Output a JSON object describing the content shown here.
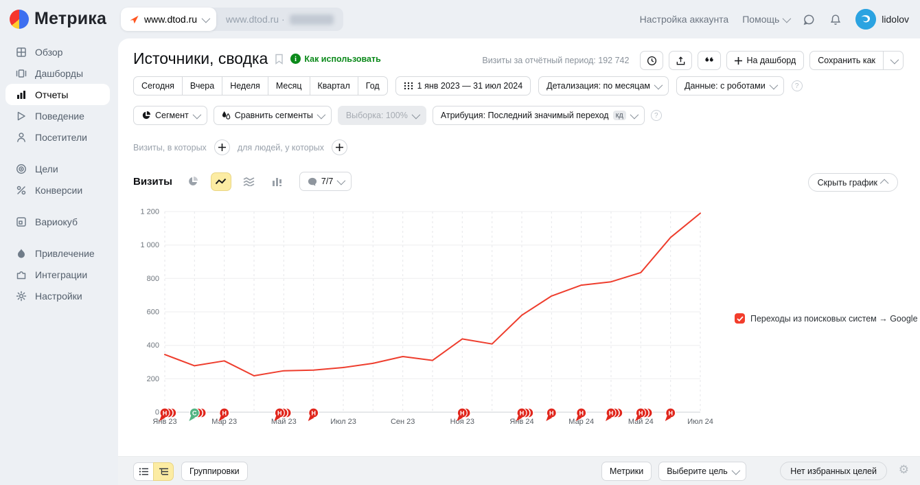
{
  "header": {
    "logo_text": "Метрика",
    "counter_active": "www.dtod.ru",
    "counter_secondary": "www.dtod.ru ·",
    "account_settings": "Настройка аккаунта",
    "help": "Помощь",
    "username": "lidolov"
  },
  "sidebar": {
    "groups": [
      {
        "items": [
          {
            "name": "overview",
            "label": "Обзор",
            "icon": "overview-grid-icon",
            "active": false
          },
          {
            "name": "dashboards",
            "label": "Дашборды",
            "icon": "dashboards-icon",
            "active": false
          },
          {
            "name": "reports",
            "label": "Отчеты",
            "icon": "reports-chart-icon",
            "active": true
          },
          {
            "name": "behavior",
            "label": "Поведение",
            "icon": "behavior-play-icon",
            "active": false
          },
          {
            "name": "visitors",
            "label": "Посетители",
            "icon": "visitors-person-icon",
            "active": false
          }
        ]
      },
      {
        "items": [
          {
            "name": "goals",
            "label": "Цели",
            "icon": "goals-target-icon",
            "active": false
          },
          {
            "name": "conversions",
            "label": "Конверсии",
            "icon": "conversions-percent-icon",
            "active": false
          }
        ]
      },
      {
        "items": [
          {
            "name": "variocube",
            "label": "Вариокуб",
            "icon": "variocube-icon",
            "active": false
          }
        ]
      },
      {
        "items": [
          {
            "name": "acquisition",
            "label": "Привлечение",
            "icon": "acquisition-flame-icon",
            "active": false
          },
          {
            "name": "integrations",
            "label": "Интеграции",
            "icon": "integrations-puzzle-icon",
            "active": false
          },
          {
            "name": "settings",
            "label": "Настройки",
            "icon": "settings-gear-icon",
            "active": false
          }
        ]
      }
    ]
  },
  "report": {
    "title": "Источники, сводка",
    "how_to_use": "Как использовать",
    "visits_period_label": "Визиты за отчётный период:",
    "visits_period_value": "192 742",
    "on_dashboard": "На дашборд",
    "save_as": "Сохранить как",
    "periods": [
      {
        "name": "today",
        "label": "Сегодня"
      },
      {
        "name": "yesterday",
        "label": "Вчера"
      },
      {
        "name": "week",
        "label": "Неделя"
      },
      {
        "name": "month",
        "label": "Месяц"
      },
      {
        "name": "quarter",
        "label": "Квартал"
      },
      {
        "name": "year",
        "label": "Год"
      }
    ],
    "date_range": "1 янв 2023 — 31 июл 2024",
    "detailing": "Детализация: по месяцам",
    "data_mode": "Данные: с роботами",
    "segment": "Сегмент",
    "compare_segments": "Сравнить сегменты",
    "sampling": "Выборка: 100%",
    "attribution": "Атрибуция: Последний значимый переход",
    "attribution_badge": "кд",
    "visits_filter_label": "Визиты, в которых",
    "people_filter_label": "для людей, у которых",
    "metric_name": "Визиты",
    "annotations_counter": "7/7",
    "hide_chart": "Скрыть график"
  },
  "chart_data": {
    "type": "line",
    "title": "Визиты",
    "x": [
      "Янв 23",
      "Фев 23",
      "Мар 23",
      "Апр 23",
      "Май 23",
      "Июн 23",
      "Июл 23",
      "Авг 23",
      "Сен 23",
      "Окт 23",
      "Ноя 23",
      "Дек 23",
      "Янв 24",
      "Фев 24",
      "Мар 24",
      "Апр 24",
      "Май 24",
      "Июн 24",
      "Июл 24"
    ],
    "xtick_labels_every": 2,
    "series": [
      {
        "name": "Переходы из поисковых систем → Google",
        "color": "#ee3d2d",
        "values": [
          345,
          278,
          307,
          218,
          248,
          252,
          267,
          292,
          333,
          310,
          438,
          408,
          580,
          695,
          760,
          780,
          835,
          1045,
          1190
        ]
      }
    ],
    "ylim": [
      0,
      1200
    ],
    "ytick_step": 200,
    "grid": true,
    "legend_position": "right",
    "annotations": [
      {
        "month": 0,
        "label": "Н",
        "color": "#e0261c",
        "stack": 2
      },
      {
        "month": 1,
        "label": "С",
        "color": "#53b483",
        "stack": 2
      },
      {
        "month": 2,
        "label": "Н",
        "color": "#e0261c",
        "stack": 0
      },
      {
        "month": 4,
        "label": "Н",
        "color": "#e0261c",
        "stack": 2,
        "dx": -6
      },
      {
        "month": 5,
        "label": "Н",
        "color": "#e0261c",
        "stack": 0
      },
      {
        "month": 10,
        "label": "Н",
        "color": "#e0261c",
        "stack": 1
      },
      {
        "month": 12,
        "label": "Н",
        "color": "#e0261c",
        "stack": 2
      },
      {
        "month": 13,
        "label": "Н",
        "color": "#e0261c",
        "stack": 0
      },
      {
        "month": 14,
        "label": "Н",
        "color": "#e0261c",
        "stack": 0
      },
      {
        "month": 15,
        "label": "Н",
        "color": "#e0261c",
        "stack": 2
      },
      {
        "month": 16,
        "label": "Н",
        "color": "#e0261c",
        "stack": 2
      },
      {
        "month": 17,
        "label": "Н",
        "color": "#e0261c",
        "stack": 0
      }
    ]
  },
  "footer": {
    "groupings": "Группировки",
    "metrics": "Метрики",
    "choose_goal": "Выберите цель",
    "no_favorite_goals": "Нет избранных целей"
  }
}
